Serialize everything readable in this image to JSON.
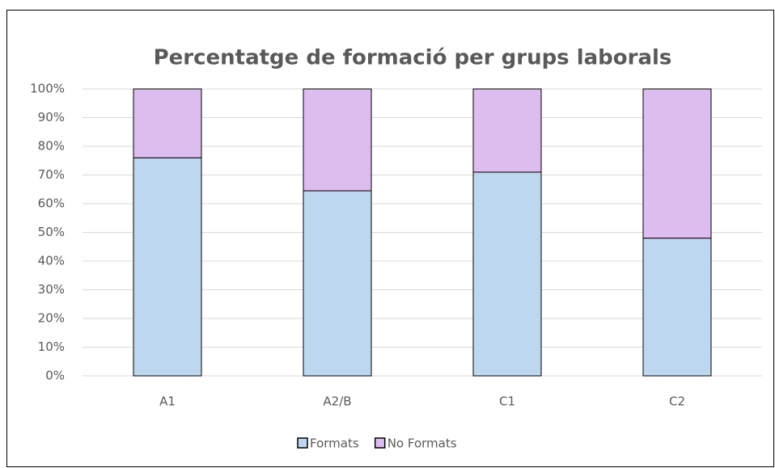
{
  "chart_data": {
    "type": "stacked_bar",
    "title": "Percentatge de formació per grups laborals",
    "categories": [
      "A1",
      "A2/B",
      "C1",
      "C2"
    ],
    "series": [
      {
        "name": "Formats",
        "color": "#bdd7ee",
        "values": [
          76,
          64.5,
          71,
          48
        ]
      },
      {
        "name": "No Formats",
        "color": "#dcbdee",
        "values": [
          24,
          35.5,
          29,
          52
        ]
      }
    ],
    "ylim": [
      0,
      100
    ],
    "yticks": [
      {
        "value": 0,
        "label": "0%"
      },
      {
        "value": 10,
        "label": "10%"
      },
      {
        "value": 20,
        "label": "20%"
      },
      {
        "value": 30,
        "label": "30%"
      },
      {
        "value": 40,
        "label": "40%"
      },
      {
        "value": 50,
        "label": "50%"
      },
      {
        "value": 60,
        "label": "60%"
      },
      {
        "value": 70,
        "label": "70%"
      },
      {
        "value": 80,
        "label": "80%"
      },
      {
        "value": 90,
        "label": "90%"
      },
      {
        "value": 100,
        "label": "100%"
      }
    ],
    "grid": true,
    "legend": "bottom"
  }
}
